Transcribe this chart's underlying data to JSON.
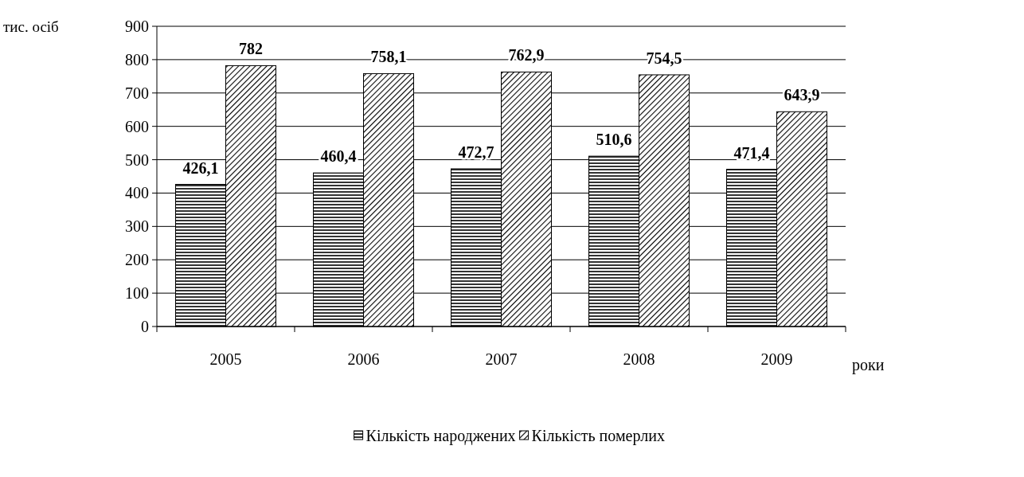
{
  "chart_data": {
    "type": "bar",
    "xlabel": "роки",
    "ylabel": "тис. осіб",
    "categories": [
      "2005",
      "2006",
      "2007",
      "2008",
      "2009"
    ],
    "series": [
      {
        "name": "Кількість народжених",
        "color": "#000000",
        "values": [
          426.1,
          460.4,
          472.7,
          510.6,
          471.4
        ],
        "value_labels": [
          "426,1",
          "460,4",
          "472,7",
          "510,6",
          "471,4"
        ]
      },
      {
        "name": "Кількість померлих",
        "color": "#000000",
        "values": [
          782,
          758.1,
          762.9,
          754.5,
          643.9
        ],
        "value_labels": [
          "782",
          "758,1",
          "762,9",
          "754,5",
          "643,9"
        ]
      }
    ],
    "ylim": [
      0,
      900
    ],
    "yticks": [
      0,
      100,
      200,
      300,
      400,
      500,
      600,
      700,
      800,
      900
    ],
    "grid": "y",
    "legend": "bottom"
  }
}
